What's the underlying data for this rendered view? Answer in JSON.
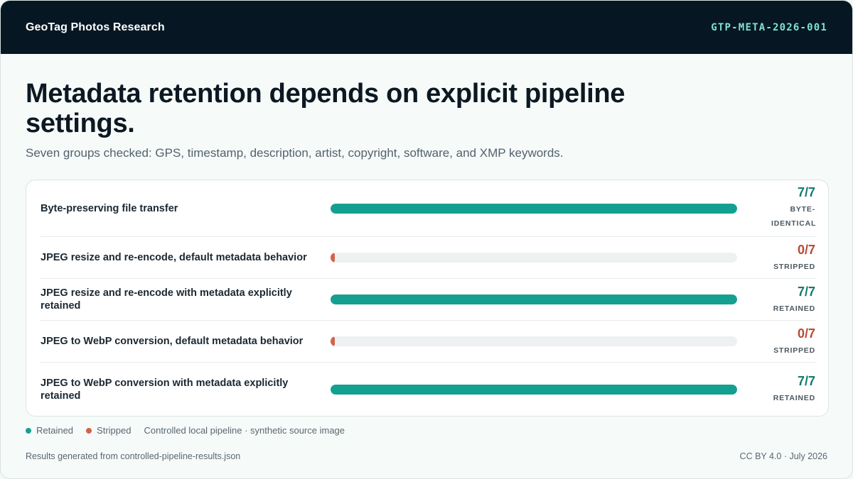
{
  "header": {
    "brand": "GeoTag Photos Research",
    "report_id": "GTP-META-2026-001"
  },
  "colors": {
    "retained": "#14a090",
    "stripped": "#d4624a",
    "value_retained": "#137a6c",
    "value_stripped": "#b84a33"
  },
  "chart_data": {
    "type": "bar",
    "title": "Metadata retention depends on explicit pipeline settings.",
    "subtitle": "Seven groups checked: GPS, timestamp, description, artist, copyright, software, and XMP keywords.",
    "xlim": [
      0,
      7
    ],
    "categories": [
      "Byte-preserving file transfer",
      "JPEG resize and re-encode, default metadata behavior",
      "JPEG resize and re-encode with metadata explicitly retained",
      "JPEG to WebP conversion, default metadata behavior",
      "JPEG to WebP conversion with metadata explicitly retained"
    ],
    "values": [
      7,
      0,
      7,
      0,
      7
    ],
    "value_labels": [
      "7/7",
      "0/7",
      "7/7",
      "0/7",
      "7/7"
    ],
    "status_labels": [
      "BYTE-IDENTICAL",
      "STRIPPED",
      "RETAINED",
      "STRIPPED",
      "RETAINED"
    ],
    "legend": [
      "Retained",
      "Stripped"
    ],
    "legend_note": "Controlled local pipeline · synthetic source image"
  },
  "footer": {
    "source": "Results generated from controlled-pipeline-results.json",
    "license": "CC BY 4.0 · July 2026"
  }
}
